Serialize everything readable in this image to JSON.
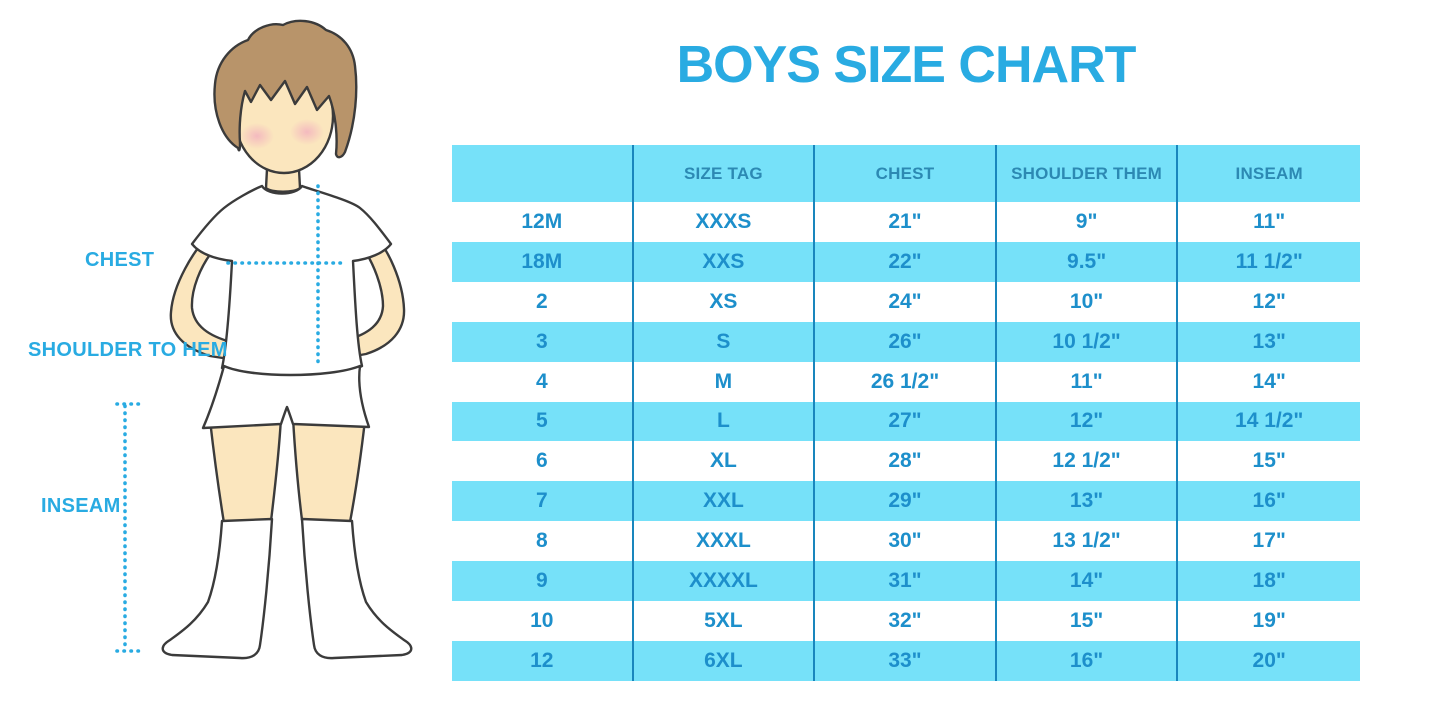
{
  "title": "BOYS SIZE CHART",
  "measurement_labels": {
    "chest": "CHEST",
    "shoulder_to_hem": "SHOULDER TO HEM",
    "inseam": "INSEAM"
  },
  "chart_data": {
    "type": "table",
    "title": "BOYS SIZE CHART",
    "columns": [
      "",
      "SIZE TAG",
      "CHEST",
      "SHOULDER THEM",
      "INSEAM"
    ],
    "rows": [
      [
        "12M",
        "XXXS",
        "21\"",
        "9\"",
        "11\""
      ],
      [
        "18M",
        "XXS",
        "22\"",
        "9.5\"",
        "11 1/2\""
      ],
      [
        "2",
        "XS",
        "24\"",
        "10\"",
        "12\""
      ],
      [
        "3",
        "S",
        "26\"",
        "10 1/2\"",
        "13\""
      ],
      [
        "4",
        "M",
        "26 1/2\"",
        "11\"",
        "14\""
      ],
      [
        "5",
        "L",
        "27\"",
        "12\"",
        "14 1/2\""
      ],
      [
        "6",
        "XL",
        "28\"",
        "12 1/2\"",
        "15\""
      ],
      [
        "7",
        "XXL",
        "29\"",
        "13\"",
        "16\""
      ],
      [
        "8",
        "XXXL",
        "30\"",
        "13 1/2\"",
        "17\""
      ],
      [
        "9",
        "XXXXL",
        "31\"",
        "14\"",
        "18\""
      ],
      [
        "10",
        "5XL",
        "32\"",
        "15\"",
        "19\""
      ],
      [
        "12",
        "6XL",
        "33\"",
        "16\"",
        "20\""
      ]
    ],
    "layout": {
      "striping": "alternating white and light blue rows",
      "grid": "vertical column separators only"
    }
  },
  "colors": {
    "accent": "#29ABE2",
    "table_fill": "#76E1F9",
    "table_border": "#1986BD",
    "cell_text": "#1D8FCB",
    "header_text": "#2C89B3",
    "skin": "#FBE6BE",
    "hair": "#B8946A",
    "blush": "#F2AFBF",
    "outline": "#3B3B3B",
    "garment": "#FFFFFF"
  }
}
